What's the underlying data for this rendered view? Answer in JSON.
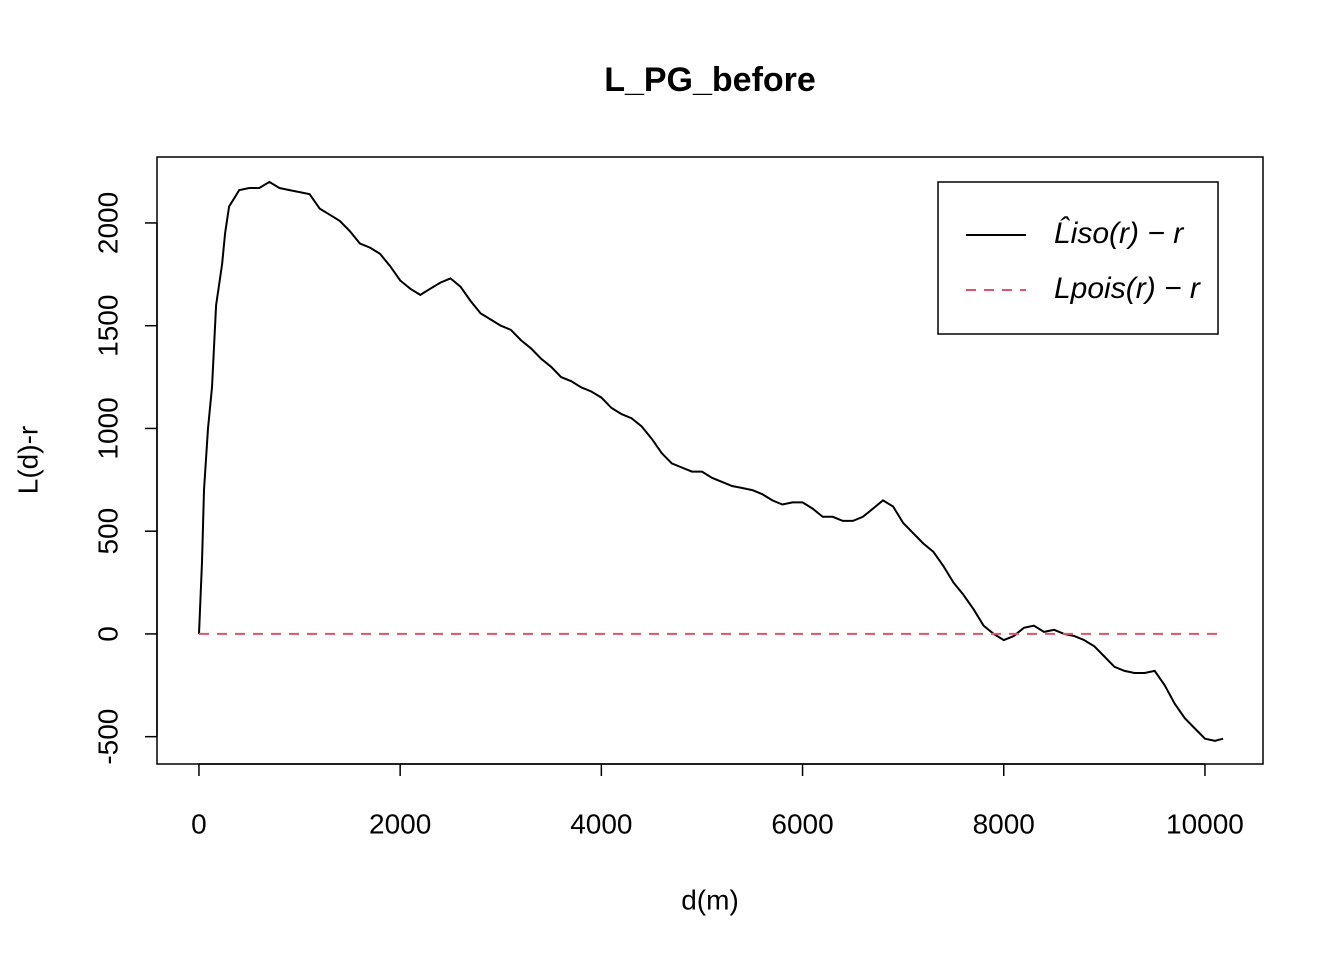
{
  "chart_data": {
    "type": "line",
    "title": "L_PG_before",
    "xlabel": "d(m)",
    "ylabel": "L(d)-r",
    "x": [
      0,
      30,
      50,
      90,
      130,
      170,
      230,
      260,
      300,
      350,
      400,
      500,
      600,
      700,
      800,
      900,
      1000,
      1100,
      1200,
      1300,
      1400,
      1500,
      1600,
      1700,
      1800,
      1900,
      2000,
      2100,
      2200,
      2300,
      2400,
      2500,
      2600,
      2700,
      2800,
      2900,
      3000,
      3100,
      3200,
      3300,
      3400,
      3500,
      3600,
      3700,
      3800,
      3900,
      4000,
      4100,
      4200,
      4300,
      4400,
      4500,
      4600,
      4700,
      4800,
      4900,
      5000,
      5100,
      5200,
      5300,
      5400,
      5500,
      5600,
      5700,
      5800,
      5900,
      6000,
      6100,
      6200,
      6300,
      6400,
      6500,
      6600,
      6700,
      6800,
      6900,
      7000,
      7100,
      7200,
      7300,
      7400,
      7500,
      7600,
      7700,
      7800,
      7900,
      8000,
      8100,
      8200,
      8300,
      8400,
      8500,
      8600,
      8700,
      8800,
      8900,
      9000,
      9100,
      9200,
      9300,
      9400,
      9500,
      9600,
      9700,
      9800,
      9900,
      10000,
      10100,
      10180
    ],
    "series": [
      {
        "name": "L̂iso(r) − r",
        "color": "#000000",
        "dash": false,
        "values": [
          0,
          350,
          700,
          1000,
          1200,
          1600,
          1800,
          1950,
          2080,
          2120,
          2160,
          2170,
          2170,
          2200,
          2170,
          2160,
          2150,
          2140,
          2070,
          2040,
          2010,
          1960,
          1900,
          1880,
          1850,
          1790,
          1720,
          1680,
          1650,
          1680,
          1710,
          1730,
          1690,
          1620,
          1560,
          1530,
          1500,
          1480,
          1430,
          1390,
          1340,
          1300,
          1250,
          1230,
          1200,
          1180,
          1150,
          1100,
          1070,
          1050,
          1010,
          950,
          880,
          830,
          810,
          790,
          790,
          760,
          740,
          720,
          710,
          700,
          680,
          650,
          630,
          640,
          640,
          610,
          570,
          570,
          550,
          550,
          570,
          610,
          650,
          620,
          540,
          490,
          440,
          400,
          330,
          250,
          190,
          120,
          40,
          0,
          -30,
          -10,
          30,
          40,
          10,
          20,
          0,
          -10,
          -30,
          -60,
          -110,
          -160,
          -180,
          -190,
          -190,
          -180,
          -250,
          -340,
          -410,
          -460,
          -510,
          -520,
          -510
        ]
      },
      {
        "name": "Lpois(r) − r",
        "color": "#DF536B",
        "dash": true,
        "values": [
          0,
          0,
          0,
          0,
          0,
          0,
          0,
          0,
          0,
          0,
          0,
          0,
          0,
          0,
          0,
          0,
          0,
          0,
          0,
          0,
          0,
          0,
          0,
          0,
          0,
          0,
          0,
          0,
          0,
          0,
          0,
          0,
          0,
          0,
          0,
          0,
          0,
          0,
          0,
          0,
          0,
          0,
          0,
          0,
          0,
          0,
          0,
          0,
          0,
          0,
          0,
          0,
          0,
          0,
          0,
          0,
          0,
          0,
          0,
          0,
          0,
          0,
          0,
          0,
          0,
          0,
          0,
          0,
          0,
          0,
          0,
          0,
          0,
          0,
          0,
          0,
          0,
          0,
          0,
          0,
          0,
          0,
          0,
          0,
          0,
          0,
          0,
          0,
          0,
          0,
          0,
          0,
          0,
          0,
          0,
          0,
          0,
          0,
          0,
          0,
          0,
          0,
          0,
          0,
          0,
          0,
          0,
          0,
          0
        ]
      }
    ],
    "xlim": [
      -417,
      10577
    ],
    "ylim": [
      -633,
      2321
    ],
    "xticks": [
      0,
      2000,
      4000,
      6000,
      8000,
      10000
    ],
    "yticks": [
      -500,
      0,
      500,
      1000,
      1500,
      2000
    ],
    "legend": "top-right",
    "grid": false
  }
}
